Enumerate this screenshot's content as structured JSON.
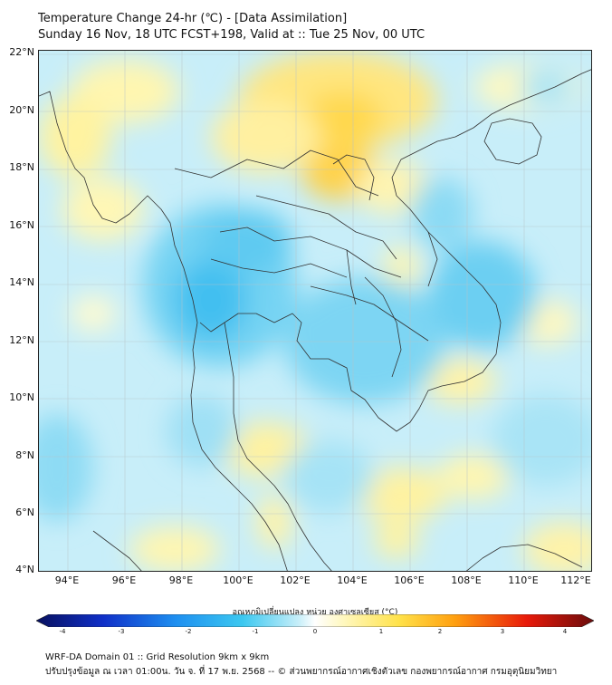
{
  "title_line1": "Temperature Change 24-hr (℃) - [Data Assimilation]",
  "title_line2": "Sunday 16 Nov, 18 UTC FCST+198, Valid at :: Tue 25 Nov, 00 UTC",
  "lat_labels": [
    "22°N",
    "20°N",
    "18°N",
    "16°N",
    "14°N",
    "12°N",
    "10°N",
    "8°N",
    "6°N",
    "4°N"
  ],
  "lon_labels": [
    "94°E",
    "96°E",
    "98°E",
    "100°E",
    "102°E",
    "104°E",
    "106°E",
    "108°E",
    "110°E",
    "112°E"
  ],
  "colorbar": {
    "caption": "อุณหภูมิเปลี่ยนแปลง หน่วย องศาเซลเซียส (°C)",
    "ticks": [
      "-4",
      "-3",
      "-2",
      "-1",
      "0",
      "1",
      "2",
      "3",
      "4"
    ],
    "range": [
      -4,
      4
    ]
  },
  "footer_line1": "WRF-DA Domain 01 :: Grid Resolution 9km x 9km",
  "footer_line2": "ปรับปรุงข้อมูล ณ เวลา 01:00น. วัน จ. ที่ 17 พ.ย. 2568 -- © ส่วนพยากรณ์อากาศเชิงตัวเลข กองพยากรณ์อากาศ กรมอุตุนิยมวิทยา"
}
